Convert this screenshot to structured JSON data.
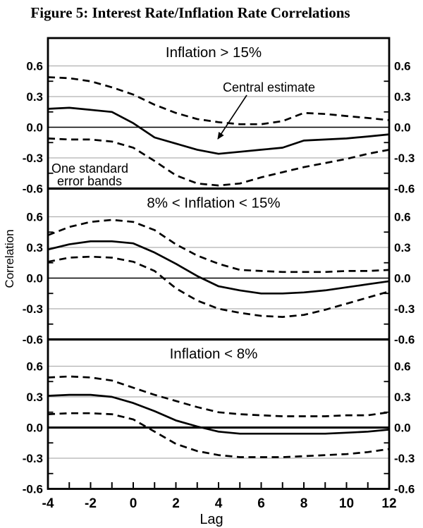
{
  "figure_title": "Figure 5: Interest Rate/Inflation Rate Correlations",
  "chart_data": {
    "type": "line",
    "title": "Figure 5: Interest Rate/Inflation Rate Correlations",
    "xlabel": "Lag",
    "ylabel": "Correlation",
    "grid": true,
    "legend_position": "none",
    "x": [
      -4,
      -3,
      -2,
      -1,
      0,
      1,
      2,
      3,
      4,
      5,
      6,
      7,
      8,
      9,
      10,
      11,
      12
    ],
    "x_tick_labels": [
      "-4",
      "-2",
      "0",
      "2",
      "4",
      "6",
      "8",
      "10",
      "12"
    ],
    "x_ticks_major": [
      -4,
      -2,
      0,
      2,
      4,
      6,
      8,
      10,
      12
    ],
    "xlim": [
      -4,
      12
    ],
    "ylim": [
      -0.6,
      0.87
    ],
    "y_ticks": [
      0.6,
      0.3,
      0.0,
      -0.3,
      -0.6
    ],
    "y_tick_labels": [
      "0.6",
      "0.3",
      "0.0",
      "-0.3",
      "-0.6"
    ],
    "y_minor_ticks": [
      0.45,
      0.15,
      -0.15,
      -0.45
    ],
    "line_color": "#000000",
    "gridline_color": "#b0b0b0",
    "panels": [
      {
        "title": "Inflation > 15%",
        "annotations": {
          "central_estimate_label": "Central estimate",
          "error_band_label_line1": "One standard",
          "error_band_label_line2": "error bands"
        },
        "series": [
          {
            "name": "Central estimate",
            "line_style": "solid",
            "values": [
              0.18,
              0.19,
              0.17,
              0.15,
              0.04,
              -0.1,
              -0.16,
              -0.22,
              -0.26,
              -0.24,
              -0.22,
              -0.2,
              -0.13,
              -0.12,
              -0.11,
              -0.09,
              -0.07
            ]
          },
          {
            "name": "Upper one standard error band",
            "line_style": "dashed",
            "values": [
              0.49,
              0.48,
              0.45,
              0.39,
              0.32,
              0.22,
              0.14,
              0.08,
              0.05,
              0.03,
              0.03,
              0.06,
              0.14,
              0.13,
              0.11,
              0.09,
              0.07
            ]
          },
          {
            "name": "Lower one standard error band",
            "line_style": "dashed",
            "values": [
              -0.11,
              -0.12,
              -0.12,
              -0.14,
              -0.2,
              -0.33,
              -0.47,
              -0.55,
              -0.57,
              -0.55,
              -0.49,
              -0.44,
              -0.39,
              -0.35,
              -0.31,
              -0.26,
              -0.22
            ]
          }
        ]
      },
      {
        "title": "8% < Inflation < 15%",
        "series": [
          {
            "name": "Central estimate",
            "line_style": "solid",
            "values": [
              0.28,
              0.33,
              0.36,
              0.36,
              0.34,
              0.25,
              0.14,
              0.02,
              -0.08,
              -0.12,
              -0.15,
              -0.15,
              -0.14,
              -0.12,
              -0.09,
              -0.06,
              -0.03
            ]
          },
          {
            "name": "Upper one standard error band",
            "line_style": "dashed",
            "values": [
              0.42,
              0.5,
              0.55,
              0.57,
              0.55,
              0.47,
              0.33,
              0.22,
              0.14,
              0.08,
              0.07,
              0.06,
              0.06,
              0.06,
              0.07,
              0.07,
              0.08
            ]
          },
          {
            "name": "Lower one standard error band",
            "line_style": "dashed",
            "values": [
              0.16,
              0.2,
              0.21,
              0.2,
              0.16,
              0.07,
              -0.1,
              -0.22,
              -0.3,
              -0.34,
              -0.37,
              -0.38,
              -0.36,
              -0.31,
              -0.25,
              -0.19,
              -0.13
            ]
          }
        ]
      },
      {
        "title": "Inflation < 8%",
        "series": [
          {
            "name": "Central estimate",
            "line_style": "solid",
            "values": [
              0.31,
              0.32,
              0.32,
              0.3,
              0.24,
              0.16,
              0.07,
              0.01,
              -0.04,
              -0.06,
              -0.06,
              -0.06,
              -0.06,
              -0.06,
              -0.05,
              -0.04,
              -0.02
            ]
          },
          {
            "name": "Upper one standard error band",
            "line_style": "dashed",
            "values": [
              0.49,
              0.5,
              0.49,
              0.46,
              0.39,
              0.32,
              0.26,
              0.2,
              0.15,
              0.13,
              0.12,
              0.11,
              0.11,
              0.11,
              0.12,
              0.12,
              0.15
            ]
          },
          {
            "name": "Lower one standard error band",
            "line_style": "dashed",
            "values": [
              0.13,
              0.14,
              0.14,
              0.13,
              0.08,
              -0.04,
              -0.16,
              -0.23,
              -0.27,
              -0.29,
              -0.29,
              -0.29,
              -0.28,
              -0.27,
              -0.26,
              -0.24,
              -0.21
            ]
          }
        ]
      }
    ]
  }
}
